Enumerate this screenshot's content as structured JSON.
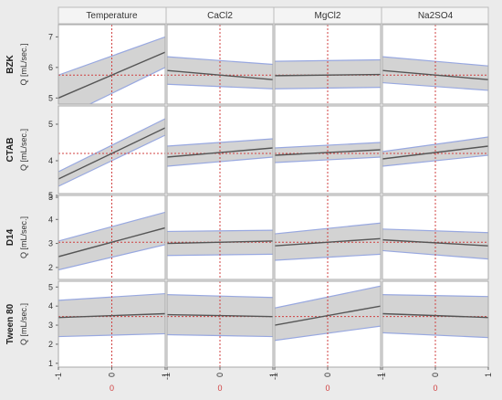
{
  "chart_data": {
    "type": "line",
    "chart_kind": "prediction profiler grid with confidence bands",
    "columns": [
      "Temperature",
      "CaCl2",
      "MgCl2",
      "Na2SO4"
    ],
    "x_ticks": [
      "-1",
      "0",
      "1"
    ],
    "x_center_label": "0",
    "xlim": [
      -1,
      1
    ],
    "reference_x": 0,
    "colors": {
      "band_fill": "#d3d3d3",
      "band_edge": "#98a8e0",
      "line": "#555555",
      "reference": "#d04040",
      "panel": "#ffffff",
      "background": "#ebebeb"
    },
    "rows": [
      {
        "name": "BZK",
        "ylabel": "Q [mL/sec.]",
        "ylim": [
          4.8,
          7.4
        ],
        "yticks": [
          5,
          6,
          7
        ],
        "reference_y": 5.75,
        "panels": [
          {
            "y": [
              5.0,
              6.5
            ],
            "lower": [
              4.3,
              6.0
            ],
            "upper": [
              5.75,
              7.0
            ]
          },
          {
            "y": [
              5.9,
              5.6
            ],
            "lower": [
              5.45,
              5.3
            ],
            "upper": [
              6.35,
              6.1
            ]
          },
          {
            "y": [
              5.73,
              5.77
            ],
            "lower": [
              5.3,
              5.35
            ],
            "upper": [
              6.2,
              6.25
            ]
          },
          {
            "y": [
              5.9,
              5.6
            ],
            "lower": [
              5.5,
              5.25
            ],
            "upper": [
              6.35,
              6.05
            ]
          }
        ]
      },
      {
        "name": "CTAB",
        "ylabel": "Q [mL/sec.]",
        "ylim": [
          3.1,
          5.5
        ],
        "yticks": [
          3,
          4,
          5
        ],
        "reference_y": 4.2,
        "panels": [
          {
            "y": [
              3.5,
              4.9
            ],
            "lower": [
              3.3,
              4.7
            ],
            "upper": [
              3.7,
              5.15
            ]
          },
          {
            "y": [
              4.1,
              4.35
            ],
            "lower": [
              3.85,
              4.1
            ],
            "upper": [
              4.4,
              4.6
            ]
          },
          {
            "y": [
              4.15,
              4.3
            ],
            "lower": [
              3.95,
              4.1
            ],
            "upper": [
              4.35,
              4.5
            ]
          },
          {
            "y": [
              4.05,
              4.4
            ],
            "lower": [
              3.85,
              4.15
            ],
            "upper": [
              4.25,
              4.65
            ]
          }
        ]
      },
      {
        "name": "D14",
        "ylabel": "Q [mL/sec.]",
        "ylim": [
          1.5,
          5.0
        ],
        "yticks": [
          2,
          3,
          4,
          5
        ],
        "reference_y": 3.05,
        "panels": [
          {
            "y": [
              2.45,
              3.65
            ],
            "lower": [
              1.9,
              2.95
            ],
            "upper": [
              3.1,
              4.3
            ]
          },
          {
            "y": [
              3.0,
              3.1
            ],
            "lower": [
              2.5,
              2.55
            ],
            "upper": [
              3.5,
              3.55
            ]
          },
          {
            "y": [
              2.9,
              3.2
            ],
            "lower": [
              2.3,
              2.55
            ],
            "upper": [
              3.4,
              3.85
            ]
          },
          {
            "y": [
              3.15,
              2.9
            ],
            "lower": [
              2.7,
              2.35
            ],
            "upper": [
              3.6,
              3.45
            ]
          }
        ]
      },
      {
        "name": "Tween 80",
        "ylabel": "Q [mL/sec.]",
        "ylim": [
          0.8,
          5.3
        ],
        "yticks": [
          1,
          2,
          3,
          4,
          5
        ],
        "reference_y": 3.45,
        "panels": [
          {
            "y": [
              3.4,
              3.6
            ],
            "lower": [
              2.4,
              2.55
            ],
            "upper": [
              4.3,
              4.65
            ]
          },
          {
            "y": [
              3.55,
              3.45
            ],
            "lower": [
              2.5,
              2.4
            ],
            "upper": [
              4.6,
              4.45
            ]
          },
          {
            "y": [
              3.0,
              4.0
            ],
            "lower": [
              2.2,
              2.95
            ],
            "upper": [
              3.9,
              5.05
            ]
          },
          {
            "y": [
              3.6,
              3.4
            ],
            "lower": [
              2.6,
              2.35
            ],
            "upper": [
              4.6,
              4.5
            ]
          }
        ]
      }
    ]
  }
}
